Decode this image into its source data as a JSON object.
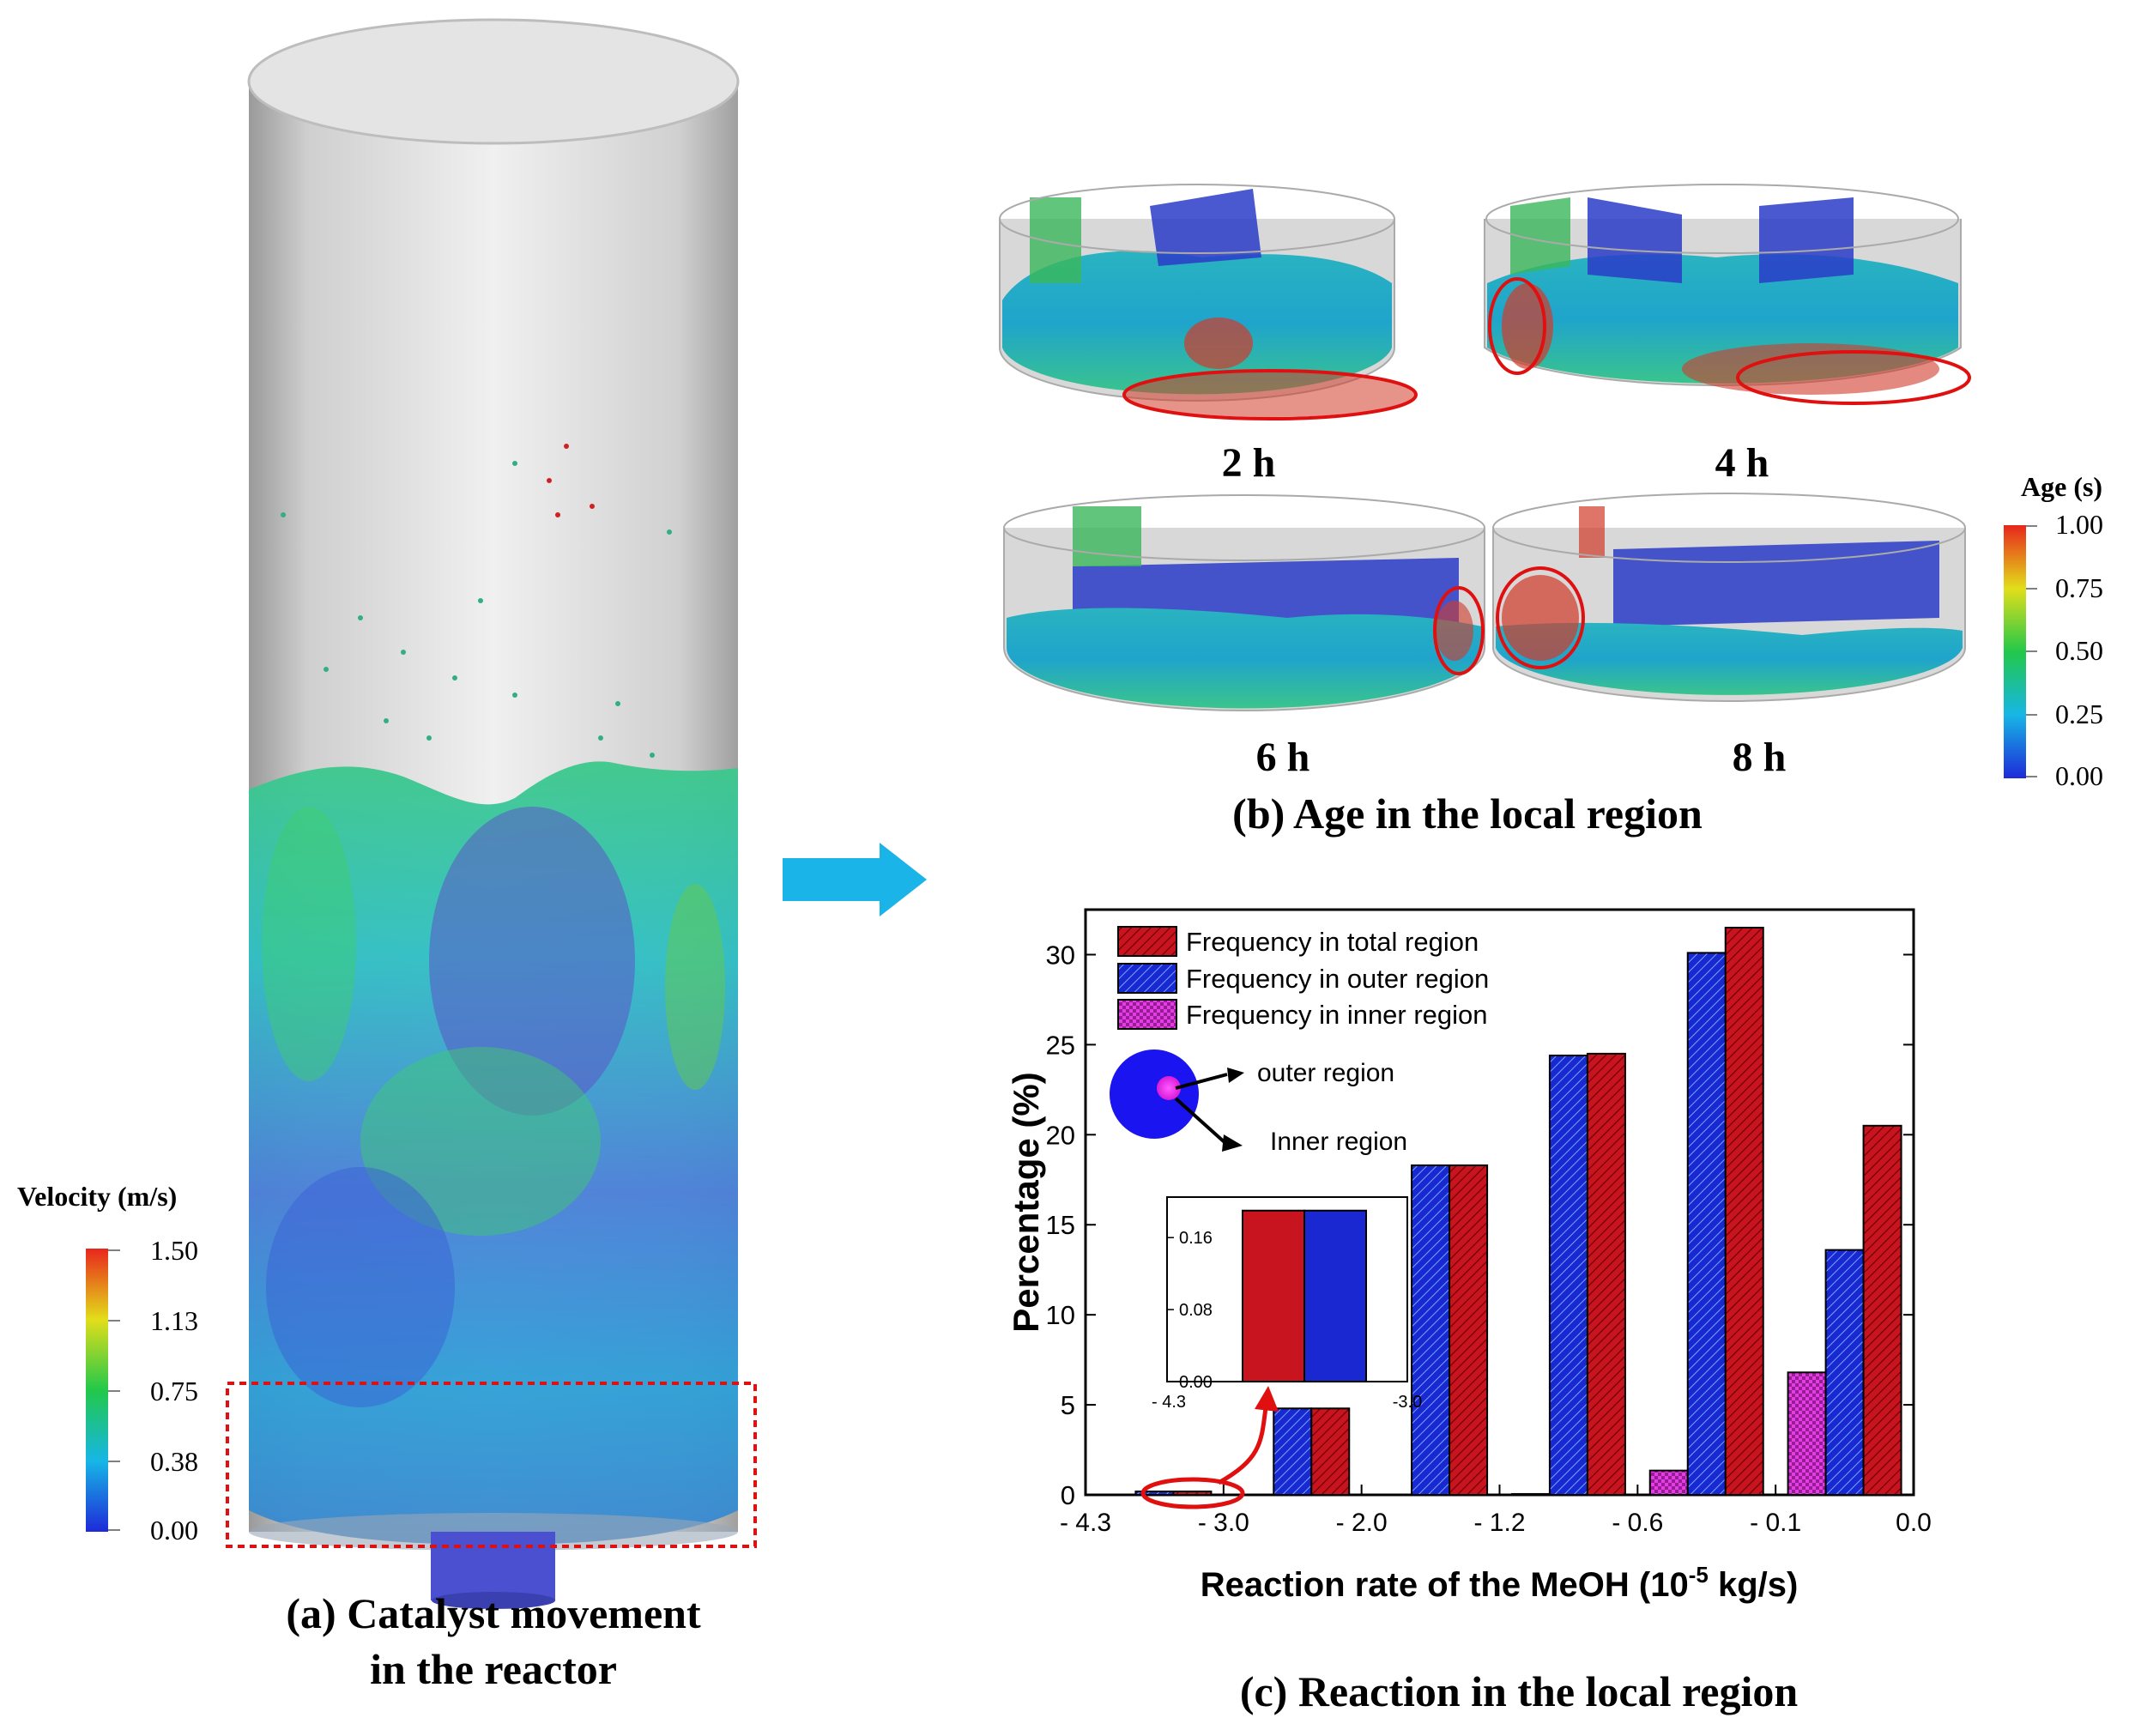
{
  "panel_a": {
    "caption_line1": "(a) Catalyst movement",
    "caption_line2": "in the reactor",
    "colorbar": {
      "title": "Velocity (m/s)",
      "ticks": [
        "1.50",
        "1.13",
        "0.75",
        "0.38",
        "0.00"
      ]
    }
  },
  "panel_b": {
    "caption": "(b) Age in the local region",
    "snapshots": [
      "2 h",
      "4 h",
      "6 h",
      "8 h"
    ],
    "colorbar": {
      "title": "Age (s)",
      "ticks": [
        "1.00",
        "0.75",
        "0.50",
        "0.25",
        "0.00"
      ]
    }
  },
  "panel_c": {
    "caption": "(c) Reaction in the local region",
    "inset_labels": {
      "outer": "outer region",
      "inner": "Inner region"
    }
  },
  "colors": {
    "total": "#c8141e",
    "outer": "#1a28d2",
    "inner": "#e040e0",
    "arrow": "#1ab4e8",
    "highlight": "#e01010"
  },
  "chart_data": {
    "type": "bar",
    "xlabel": "Reaction rate of the MeOH (10",
    "xlabel_sup": "-5",
    "xlabel_tail": " kg/s)",
    "ylabel": "Percentage (%)",
    "x_ticks": [
      "- 4.3",
      "- 3.0",
      "- 2.0",
      "- 1.2",
      "- 0.6",
      "- 0.1",
      "0.0"
    ],
    "y_ticks": [
      "0",
      "5",
      "10",
      "15",
      "20",
      "25",
      "30"
    ],
    "ylim": [
      0,
      32.5
    ],
    "categories": [
      "-4.3 ~ -3.0",
      "-3.0 ~ -2.0",
      "-2.0 ~ -1.2",
      "-1.2 ~ -0.6",
      "-0.6 ~ -0.1",
      "-0.1 ~ 0.0"
    ],
    "series": [
      {
        "name": "Frequency in total region",
        "values": [
          0.19,
          4.8,
          18.3,
          24.5,
          31.5,
          20.5
        ]
      },
      {
        "name": "Frequency in outer region",
        "values": [
          0.19,
          4.8,
          18.3,
          24.4,
          30.1,
          13.6
        ]
      },
      {
        "name": "Frequency in inner region",
        "values": [
          0.0,
          0.0,
          0.0,
          0.05,
          1.35,
          6.8
        ]
      }
    ],
    "inset": {
      "x_ticks": [
        "- 4.3",
        "-3.0"
      ],
      "y_ticks": [
        "0.00",
        "0.08",
        "0.16"
      ],
      "ylim": [
        0,
        0.205
      ],
      "values_total": 0.19,
      "values_outer": 0.19
    }
  }
}
